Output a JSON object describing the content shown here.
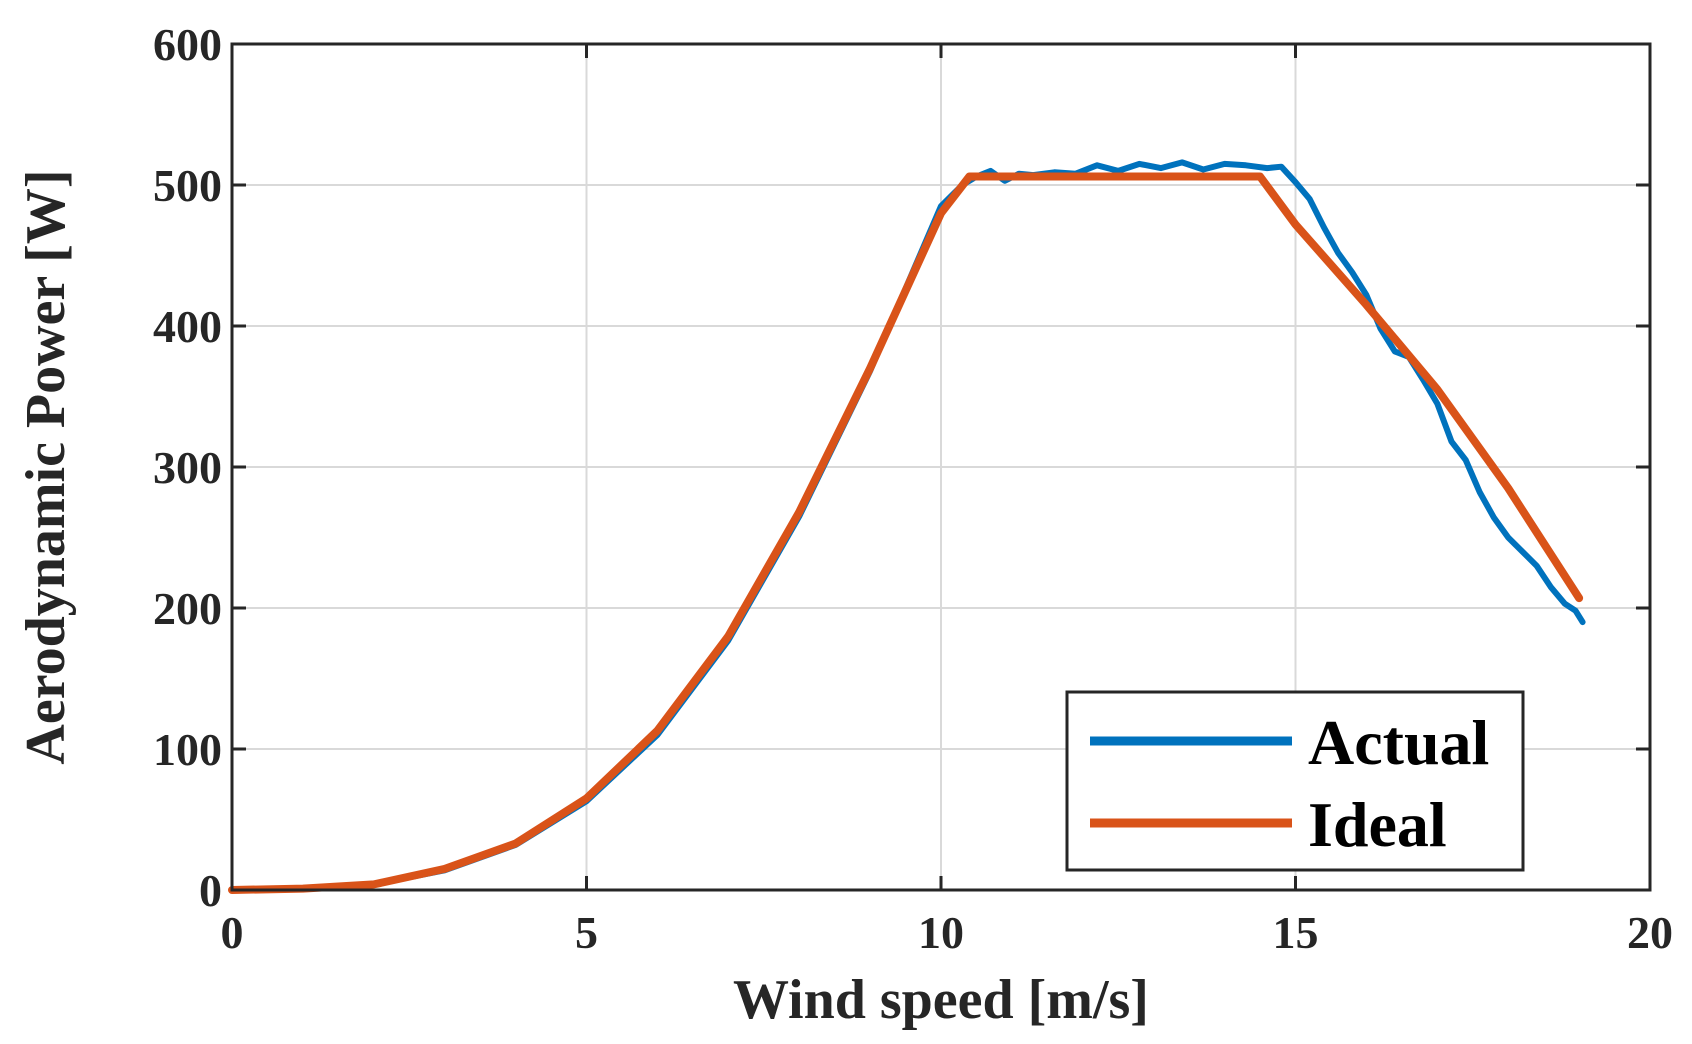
{
  "chart_data": {
    "type": "line",
    "title": "",
    "xlabel": "Wind speed [m/s]",
    "ylabel": "Aerodynamic Power [W]",
    "xlim": [
      0,
      20
    ],
    "ylim": [
      0,
      600
    ],
    "xticks": [
      0,
      5,
      10,
      15,
      20
    ],
    "yticks": [
      0,
      100,
      200,
      300,
      400,
      500,
      600
    ],
    "xtick_labels": [
      "0",
      "5",
      "10",
      "15",
      "20"
    ],
    "ytick_labels": [
      "0",
      "100",
      "200",
      "300",
      "400",
      "500",
      "600"
    ],
    "grid": true,
    "legend_position": "bottom-right",
    "series": [
      {
        "name": "Actual",
        "color": "#0072BD",
        "x": [
          0,
          1,
          2,
          3,
          4,
          5,
          6,
          7,
          8,
          9,
          10,
          10.3,
          10.5,
          10.7,
          10.9,
          11.1,
          11.3,
          11.6,
          11.9,
          12.2,
          12.5,
          12.8,
          13.1,
          13.4,
          13.7,
          14.0,
          14.3,
          14.6,
          14.8,
          15.0,
          15.2,
          15.4,
          15.6,
          15.8,
          16.0,
          16.2,
          16.4,
          16.6,
          16.8,
          17.0,
          17.2,
          17.4,
          17.6,
          17.8,
          18.0,
          18.2,
          18.4,
          18.6,
          18.8,
          18.95,
          19.05
        ],
        "y": [
          0,
          1,
          4,
          14,
          32,
          63,
          110,
          177,
          265,
          368,
          485,
          500,
          506,
          510,
          503,
          508,
          507,
          509,
          508,
          514,
          510,
          515,
          512,
          516,
          511,
          515,
          514,
          512,
          513,
          502,
          490,
          470,
          452,
          438,
          422,
          398,
          382,
          378,
          362,
          345,
          318,
          305,
          282,
          264,
          250,
          240,
          230,
          215,
          203,
          198,
          190
        ]
      },
      {
        "name": "Ideal",
        "color": "#D95319",
        "x": [
          0,
          1,
          2,
          3,
          4,
          5,
          6,
          7,
          8,
          9,
          10,
          10.4,
          14.5,
          15.0,
          16.0,
          17.0,
          18.0,
          19.0
        ],
        "y": [
          0,
          1,
          4,
          15,
          33,
          65,
          113,
          180,
          268,
          370,
          480,
          506,
          506,
          472,
          415,
          355,
          285,
          207
        ]
      }
    ]
  }
}
